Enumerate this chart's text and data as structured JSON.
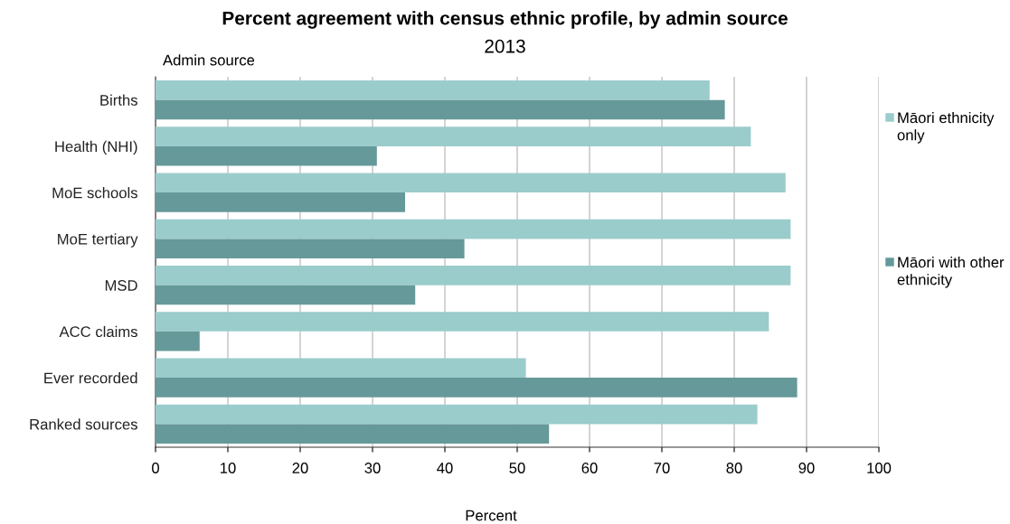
{
  "chart_data": {
    "type": "bar",
    "orientation": "horizontal",
    "title": "Percent agreement with census ethnic profile, by admin source",
    "subtitle": "2013",
    "xlabel": "Percent",
    "ylabel": "Admin source",
    "categories": [
      "Births",
      "Health (NHI)",
      "MoE schools",
      "MoE tertiary",
      "MSD",
      "ACC claims",
      "Ever recorded",
      "Ranked sources"
    ],
    "series": [
      {
        "name": "Māori ethnicity only",
        "color": "#9bcccc",
        "values": [
          76.6,
          82.3,
          87.1,
          87.8,
          87.8,
          84.8,
          51.2,
          83.2
        ]
      },
      {
        "name": "Māori with other ethnicity",
        "color": "#669999",
        "values": [
          78.7,
          30.6,
          34.5,
          42.7,
          35.9,
          6.1,
          88.7,
          54.4
        ]
      }
    ],
    "xlim": [
      0,
      100
    ],
    "xticks": [
      0,
      10,
      20,
      30,
      40,
      50,
      60,
      70,
      80,
      90,
      100
    ],
    "grid": "x",
    "legend": "right"
  }
}
